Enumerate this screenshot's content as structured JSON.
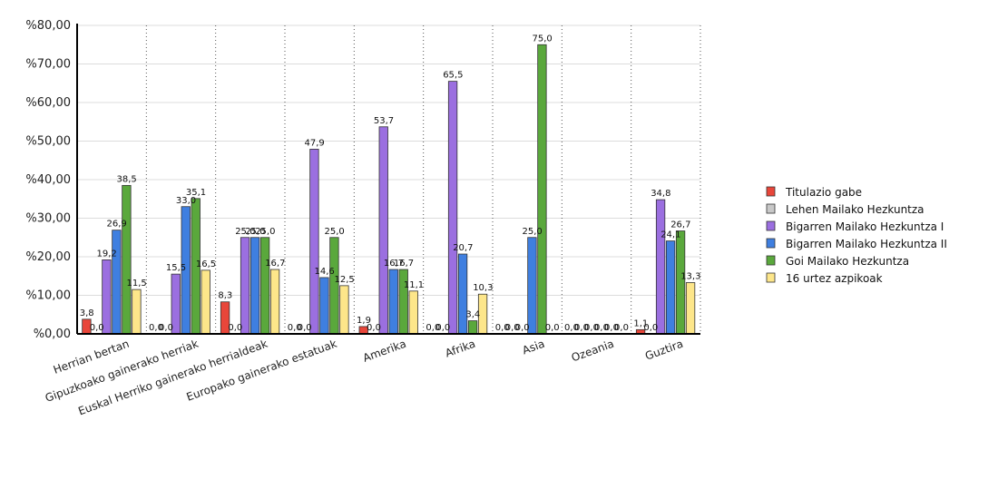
{
  "chart_data": {
    "type": "bar",
    "categories": [
      "Herrian bertan",
      "Gipuzkoako gainerako herriak",
      "Euskal Herriko gainerako herrialdeak",
      "Europako gainerako estatuak",
      "Amerika",
      "Afrika",
      "Asia",
      "Ozeania",
      "Guztira"
    ],
    "series": [
      {
        "name": "Titulazio gabe",
        "color": "#e8463a",
        "values": [
          3.8,
          0.0,
          8.3,
          0.0,
          1.9,
          0.0,
          0.0,
          0.0,
          1.1
        ]
      },
      {
        "name": "Lehen Mailako Hezkuntza",
        "color": "#c8c8c8",
        "values": [
          0.0,
          0.0,
          0.0,
          0.0,
          0.0,
          0.0,
          0.0,
          0.0,
          0.0
        ]
      },
      {
        "name": "Bigarren Mailako Hezkuntza I",
        "color": "#9b6fe0",
        "values": [
          19.2,
          15.5,
          25.0,
          47.9,
          53.7,
          65.5,
          0.0,
          0.0,
          34.8
        ]
      },
      {
        "name": "Bigarren Mailako Hezkuntza II",
        "color": "#3f7fe0",
        "values": [
          26.9,
          33.0,
          25.0,
          14.6,
          16.7,
          20.7,
          25.0,
          0.0,
          24.1
        ]
      },
      {
        "name": "Goi Mailako Hezkuntza",
        "color": "#5aa83c",
        "values": [
          38.5,
          35.1,
          25.0,
          25.0,
          16.7,
          3.4,
          75.0,
          0.0,
          26.7
        ]
      },
      {
        "name": "16 urtez azpikoak",
        "color": "#fde68a",
        "values": [
          11.5,
          16.5,
          16.7,
          12.5,
          11.1,
          10.3,
          0.0,
          0.0,
          13.3
        ]
      }
    ],
    "value_labels": [
      [
        "3,8",
        "0,0",
        "8,3",
        "0,0",
        "1,9",
        "0,0",
        "0,0",
        "0,0",
        "1,1"
      ],
      [
        "0,0",
        "0,0",
        "0,0",
        "0,0",
        "0,0",
        "0,0",
        "0,0",
        "0,0",
        "0,0"
      ],
      [
        "19,2",
        "15,5",
        "25,0",
        "47,9",
        "53,7",
        "65,5",
        "0,0",
        "0,0",
        "34,8"
      ],
      [
        "26,9",
        "33,0",
        "25,0",
        "14,6",
        "16,7",
        "20,7",
        "25,0",
        "0,0",
        "24,1"
      ],
      [
        "38,5",
        "35,1",
        "25,0",
        "25,0",
        "16,7",
        "3,4",
        "75,0",
        "0,0",
        "26,7"
      ],
      [
        "11,5",
        "16,5",
        "16,7",
        "12,5",
        "11,1",
        "10,3",
        "0,0",
        "0,0",
        "13,3"
      ]
    ],
    "yticks": [
      0,
      10,
      20,
      30,
      40,
      50,
      60,
      70,
      80
    ],
    "ytick_labels": [
      "%0,00",
      "%10,00",
      "%20,00",
      "%30,00",
      "%40,00",
      "%50,00",
      "%60,00",
      "%70,00",
      "%80,00"
    ],
    "ylim": [
      0,
      80
    ],
    "grid": "vertical dotted separators between categories",
    "legend_position": "right",
    "title": "",
    "xlabel": "",
    "ylabel": ""
  }
}
